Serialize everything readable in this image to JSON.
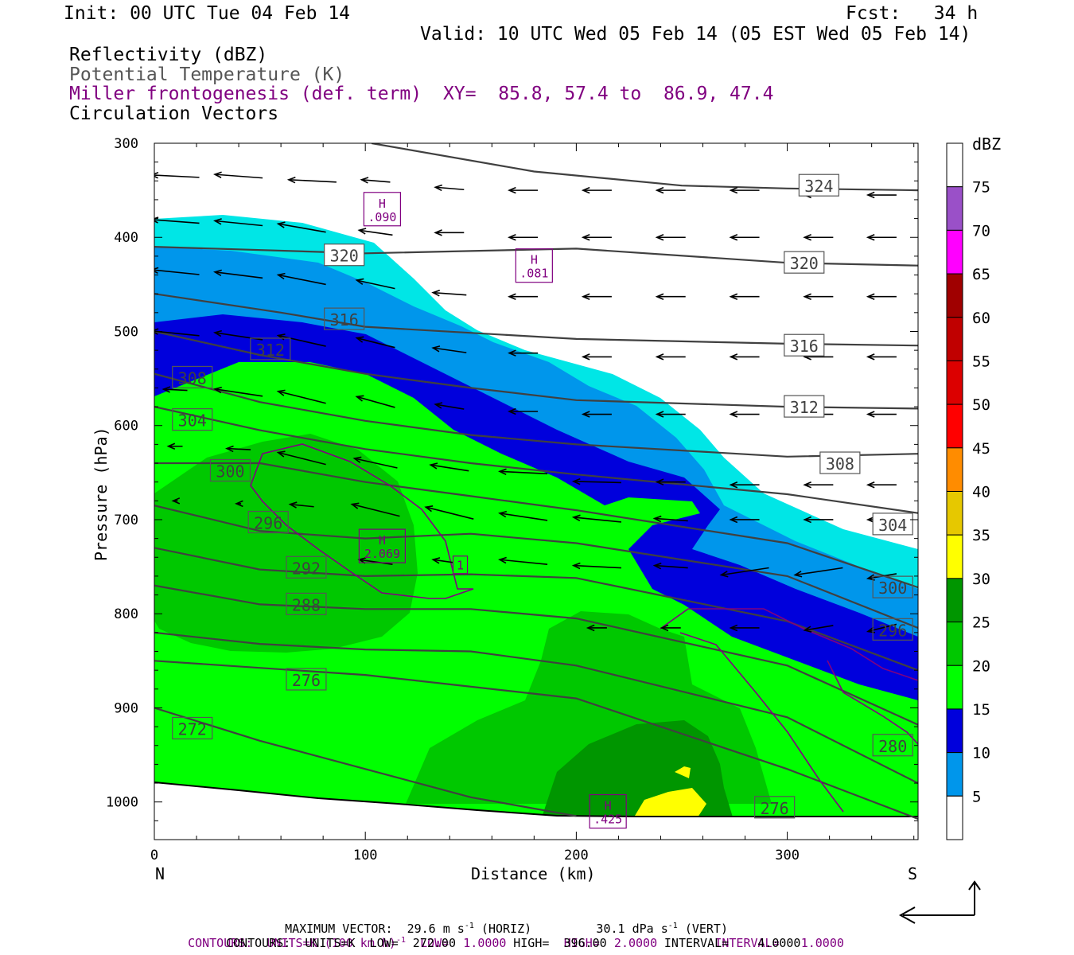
{
  "header": {
    "init": "Init: 00 UTC Tue 04 Feb 14",
    "fcst": "Fcst:   34 h",
    "valid": "Valid: 10 UTC Wed 05 Feb 14 (05 EST Wed 05 Feb 14)"
  },
  "fields": {
    "reflectivity": "Reflectivity (dBZ)",
    "theta": "Potential Temperature (K)",
    "frontogenesis": "Miller frontogenesis (def. term)",
    "xy": "XY=  85.8, 57.4 to  86.9, 47.4",
    "vectors": "Circulation Vectors"
  },
  "colors": {
    "r5": "#00e6e6",
    "r10": "#0096eb",
    "r15": "#0000dc",
    "r20": "#00ff00",
    "r25": "#00c800",
    "r30": "#009600",
    "r35": "#ffff00",
    "r40": "#e6c800",
    "r45": "#ff8c00",
    "r50": "#ff0000",
    "r55": "#dc0000",
    "r60": "#c00000",
    "r65": "#a00000",
    "r70": "#ff00ff",
    "r75": "#9a50c8",
    "theta_line": "#404040",
    "fronto_line": "#800080"
  },
  "chart_data": {
    "type": "cross-section",
    "xlabel": "Distance (km)",
    "ylabel": "Pressure (hPa)",
    "xlim": [
      0,
      362
    ],
    "ylim": [
      300,
      1040
    ],
    "x_ticks": [
      "0",
      "100",
      "200",
      "300"
    ],
    "y_ticks": [
      "300",
      "400",
      "500",
      "600",
      "700",
      "800",
      "900",
      "1000"
    ],
    "left_end": "N",
    "right_end": "S",
    "colorbar": {
      "unit": "dBZ",
      "levels": [
        "5",
        "10",
        "15",
        "20",
        "25",
        "30",
        "35",
        "40",
        "45",
        "50",
        "55",
        "60",
        "65",
        "70",
        "75"
      ]
    },
    "theta_contours": [
      {
        "label": "324",
        "x": [
          103,
          180,
          250,
          300,
          362
        ],
        "p": [
          300,
          330,
          345,
          348,
          350
        ]
      },
      {
        "label": "320",
        "x": [
          0,
          100,
          200,
          300,
          362
        ],
        "p": [
          410,
          417,
          412,
          427,
          430
        ]
      },
      {
        "label": "316",
        "x": [
          0,
          60,
          100,
          200,
          300,
          362
        ],
        "p": [
          460,
          480,
          495,
          508,
          513,
          515
        ]
      },
      {
        "label": "312",
        "x": [
          0,
          50,
          100,
          150,
          200,
          300,
          362
        ],
        "p": [
          500,
          525,
          545,
          560,
          573,
          580,
          582
        ]
      },
      {
        "label": "308",
        "x": [
          0,
          50,
          100,
          150,
          200,
          300,
          362
        ],
        "p": [
          545,
          575,
          595,
          610,
          620,
          633,
          630
        ]
      },
      {
        "label": "304",
        "x": [
          0,
          50,
          100,
          150,
          200,
          300,
          362
        ],
        "p": [
          580,
          605,
          625,
          640,
          652,
          673,
          693
        ]
      },
      {
        "label": "300",
        "x": [
          0,
          50,
          100,
          150,
          200,
          300,
          362
        ],
        "p": [
          640,
          640,
          660,
          675,
          690,
          725,
          772
        ]
      },
      {
        "label": "296",
        "x": [
          0,
          50,
          100,
          150,
          200,
          300,
          362
        ],
        "p": [
          685,
          712,
          720,
          715,
          725,
          760,
          815
        ]
      },
      {
        "label": "292",
        "x": [
          0,
          50,
          100,
          150,
          200,
          300,
          362
        ],
        "p": [
          730,
          753,
          760,
          758,
          762,
          808,
          860
        ]
      },
      {
        "label": "288",
        "x": [
          0,
          50,
          100,
          150,
          200,
          300,
          362
        ],
        "p": [
          770,
          790,
          795,
          795,
          805,
          855,
          918
        ]
      },
      {
        "label": "280",
        "x": [
          0,
          50,
          100,
          150,
          200,
          300,
          362
        ],
        "p": [
          820,
          832,
          838,
          840,
          855,
          910,
          980
        ]
      },
      {
        "label": "276",
        "x": [
          0,
          100,
          200,
          300,
          362
        ],
        "p": [
          850,
          865,
          890,
          965,
          1018
        ]
      },
      {
        "label": "272",
        "x": [
          0,
          50,
          100,
          150,
          200
        ],
        "p": [
          900,
          935,
          965,
          995,
          1015
        ]
      }
    ],
    "theta_labels": [
      {
        "text": "324",
        "x": 315,
        "p": 345
      },
      {
        "text": "320",
        "x": 90,
        "p": 419
      },
      {
        "text": "320",
        "x": 308,
        "p": 427
      },
      {
        "text": "316",
        "x": 90,
        "p": 487
      },
      {
        "text": "316",
        "x": 308,
        "p": 515
      },
      {
        "text": "312",
        "x": 55,
        "p": 519
      },
      {
        "text": "312",
        "x": 308,
        "p": 580
      },
      {
        "text": "308",
        "x": 18,
        "p": 549
      },
      {
        "text": "308",
        "x": 325,
        "p": 640
      },
      {
        "text": "304",
        "x": 18,
        "p": 594
      },
      {
        "text": "304",
        "x": 350,
        "p": 705
      },
      {
        "text": "300",
        "x": 36,
        "p": 648
      },
      {
        "text": "300",
        "x": 350,
        "p": 772
      },
      {
        "text": "296",
        "x": 54,
        "p": 703
      },
      {
        "text": "296",
        "x": 350,
        "p": 817
      },
      {
        "text": "292",
        "x": 72,
        "p": 751
      },
      {
        "text": "288",
        "x": 72,
        "p": 790
      },
      {
        "text": "280",
        "x": 350,
        "p": 940
      },
      {
        "text": "276",
        "x": 72,
        "p": 870
      },
      {
        "text": "276",
        "x": 294,
        "p": 1006
      },
      {
        "text": "272",
        "x": 18,
        "p": 922
      }
    ],
    "fronto_maxima": [
      {
        "label": "H",
        "value": ".090",
        "x": 108,
        "p": 370
      },
      {
        "label": "H",
        "value": ".081",
        "x": 180,
        "p": 430
      },
      {
        "label": "H",
        "value": "2.069",
        "x": 108,
        "p": 728
      },
      {
        "label": "H",
        "value": ".425",
        "x": 215,
        "p": 1010
      }
    ],
    "fronto_contour_label": {
      "text": "1",
      "x": 145,
      "p": 748
    },
    "vector_scale": {
      "max_horiz": "29.6",
      "max_vert": "30.1"
    },
    "vectors": [
      {
        "x": 10,
        "p": 335,
        "u": -1,
        "w": 0.1
      },
      {
        "x": 40,
        "p": 335,
        "u": -1,
        "w": 0.15
      },
      {
        "x": 75,
        "p": 340,
        "u": -1,
        "w": 0.1
      },
      {
        "x": 105,
        "p": 340,
        "u": -0.6,
        "w": 0.1
      },
      {
        "x": 140,
        "p": 348,
        "u": -0.6,
        "w": 0.1
      },
      {
        "x": 175,
        "p": 350,
        "u": -0.6,
        "w": 0
      },
      {
        "x": 210,
        "p": 350,
        "u": -0.6,
        "w": 0
      },
      {
        "x": 245,
        "p": 350,
        "u": -0.6,
        "w": 0
      },
      {
        "x": 280,
        "p": 350,
        "u": -0.6,
        "w": 0
      },
      {
        "x": 315,
        "p": 355,
        "u": -0.6,
        "w": 0
      },
      {
        "x": 345,
        "p": 355,
        "u": -0.6,
        "w": 0
      },
      {
        "x": 10,
        "p": 383,
        "u": -1,
        "w": 0.15
      },
      {
        "x": 40,
        "p": 385,
        "u": -1,
        "w": 0.2
      },
      {
        "x": 70,
        "p": 390,
        "u": -1,
        "w": 0.35
      },
      {
        "x": 105,
        "p": 395,
        "u": -0.7,
        "w": 0.2
      },
      {
        "x": 140,
        "p": 395,
        "u": -0.6,
        "w": 0
      },
      {
        "x": 175,
        "p": 400,
        "u": -0.6,
        "w": 0
      },
      {
        "x": 210,
        "p": 400,
        "u": -0.6,
        "w": 0
      },
      {
        "x": 245,
        "p": 400,
        "u": -0.6,
        "w": 0
      },
      {
        "x": 280,
        "p": 400,
        "u": -0.6,
        "w": 0
      },
      {
        "x": 315,
        "p": 400,
        "u": -0.6,
        "w": 0
      },
      {
        "x": 345,
        "p": 400,
        "u": -0.6,
        "w": 0
      },
      {
        "x": 10,
        "p": 437,
        "u": -1,
        "w": 0.2
      },
      {
        "x": 40,
        "p": 440,
        "u": -1,
        "w": 0.25
      },
      {
        "x": 70,
        "p": 445,
        "u": -1,
        "w": 0.4
      },
      {
        "x": 105,
        "p": 450,
        "u": -0.8,
        "w": 0.35
      },
      {
        "x": 140,
        "p": 460,
        "u": -0.7,
        "w": 0.1
      },
      {
        "x": 175,
        "p": 463,
        "u": -0.6,
        "w": 0
      },
      {
        "x": 210,
        "p": 463,
        "u": -0.6,
        "w": 0
      },
      {
        "x": 245,
        "p": 463,
        "u": -0.6,
        "w": 0
      },
      {
        "x": 280,
        "p": 463,
        "u": -0.6,
        "w": 0
      },
      {
        "x": 315,
        "p": 463,
        "u": -0.6,
        "w": 0
      },
      {
        "x": 345,
        "p": 463,
        "u": -0.6,
        "w": 0
      },
      {
        "x": 10,
        "p": 502,
        "u": -1,
        "w": 0.2
      },
      {
        "x": 40,
        "p": 505,
        "u": -1,
        "w": 0.3
      },
      {
        "x": 70,
        "p": 510,
        "u": -1,
        "w": 0.45
      },
      {
        "x": 105,
        "p": 512,
        "u": -0.8,
        "w": 0.4
      },
      {
        "x": 140,
        "p": 520,
        "u": -0.7,
        "w": 0.2
      },
      {
        "x": 175,
        "p": 523,
        "u": -0.6,
        "w": 0
      },
      {
        "x": 210,
        "p": 527,
        "u": -0.6,
        "w": 0
      },
      {
        "x": 245,
        "p": 527,
        "u": -0.6,
        "w": 0
      },
      {
        "x": 280,
        "p": 527,
        "u": -0.6,
        "w": 0
      },
      {
        "x": 315,
        "p": 527,
        "u": -0.6,
        "w": 0
      },
      {
        "x": 345,
        "p": 527,
        "u": -0.6,
        "w": 0
      },
      {
        "x": 10,
        "p": 562,
        "u": -0.5,
        "w": 0.05
      },
      {
        "x": 40,
        "p": 565,
        "u": -1,
        "w": 0.3
      },
      {
        "x": 70,
        "p": 570,
        "u": -1,
        "w": 0.5
      },
      {
        "x": 105,
        "p": 575,
        "u": -0.8,
        "w": 0.45
      },
      {
        "x": 140,
        "p": 580,
        "u": -0.6,
        "w": 0.2
      },
      {
        "x": 175,
        "p": 585,
        "u": -0.6,
        "w": 0
      },
      {
        "x": 210,
        "p": 588,
        "u": -0.6,
        "w": 0
      },
      {
        "x": 245,
        "p": 588,
        "u": -0.6,
        "w": 0
      },
      {
        "x": 280,
        "p": 588,
        "u": -0.6,
        "w": 0
      },
      {
        "x": 315,
        "p": 588,
        "u": -0.6,
        "w": 0
      },
      {
        "x": 345,
        "p": 588,
        "u": -0.6,
        "w": 0
      },
      {
        "x": 10,
        "p": 622,
        "u": -0.3,
        "w": 0
      },
      {
        "x": 40,
        "p": 625,
        "u": -0.5,
        "w": 0.05
      },
      {
        "x": 70,
        "p": 635,
        "u": -1,
        "w": 0.5
      },
      {
        "x": 105,
        "p": 640,
        "u": -0.9,
        "w": 0.4
      },
      {
        "x": 140,
        "p": 645,
        "u": -0.8,
        "w": 0.25
      },
      {
        "x": 175,
        "p": 650,
        "u": -1,
        "w": 0.1
      },
      {
        "x": 210,
        "p": 660,
        "u": -1,
        "w": 0.05
      },
      {
        "x": 245,
        "p": 660,
        "u": -0.6,
        "w": 0
      },
      {
        "x": 280,
        "p": 663,
        "u": -0.6,
        "w": 0
      },
      {
        "x": 315,
        "p": 663,
        "u": -0.6,
        "w": 0
      },
      {
        "x": 345,
        "p": 663,
        "u": -0.6,
        "w": 0
      },
      {
        "x": 10,
        "p": 680,
        "u": -0.1,
        "w": 0
      },
      {
        "x": 40,
        "p": 683,
        "u": -0.1,
        "w": 0
      },
      {
        "x": 70,
        "p": 685,
        "u": -0.5,
        "w": 0.1
      },
      {
        "x": 105,
        "p": 690,
        "u": -1,
        "w": 0.5
      },
      {
        "x": 140,
        "p": 693,
        "u": -1,
        "w": 0.5
      },
      {
        "x": 175,
        "p": 697,
        "u": -1,
        "w": 0.3
      },
      {
        "x": 210,
        "p": 700,
        "u": -1,
        "w": 0.2
      },
      {
        "x": 245,
        "p": 700,
        "u": -0.7,
        "w": 0.1
      },
      {
        "x": 280,
        "p": 700,
        "u": -0.6,
        "w": 0
      },
      {
        "x": 315,
        "p": 700,
        "u": -0.6,
        "w": 0
      },
      {
        "x": 345,
        "p": 700,
        "u": -0.6,
        "w": 0
      },
      {
        "x": 105,
        "p": 745,
        "u": -0.7,
        "w": 0.2
      },
      {
        "x": 140,
        "p": 745,
        "u": -0.7,
        "w": 0.2
      },
      {
        "x": 175,
        "p": 745,
        "u": -1,
        "w": 0.2
      },
      {
        "x": 210,
        "p": 750,
        "u": -1,
        "w": 0.1
      },
      {
        "x": 245,
        "p": 750,
        "u": -0.7,
        "w": 0.1
      },
      {
        "x": 280,
        "p": 755,
        "u": -1,
        "w": -0.3
      },
      {
        "x": 315,
        "p": 755,
        "u": -1,
        "w": -0.3
      },
      {
        "x": 345,
        "p": 760,
        "u": -0.6,
        "w": -0.2
      },
      {
        "x": 210,
        "p": 815,
        "u": -0.4,
        "w": 0
      },
      {
        "x": 245,
        "p": 815,
        "u": -0.4,
        "w": 0
      },
      {
        "x": 280,
        "p": 815,
        "u": -0.6,
        "w": 0
      },
      {
        "x": 315,
        "p": 815,
        "u": -0.6,
        "w": -0.2
      },
      {
        "x": 345,
        "p": 815,
        "u": -0.6,
        "w": -0.3
      }
    ]
  },
  "footer": {
    "line1": "MAXIMUM VECTOR:  29.6 m s",
    "line1b": "(HORIZ)         30.1 dPa s",
    "line1c": "(VERT)",
    "line2": "CONTOURS:  UNITS=K (100 km h)",
    "line2b": "LOW=  1.0000        HIGH=  2.0000        INTERVAL=   1.0000",
    "line3": "CONTOURS:  UNITS=K  LOW=  272.00        HIGH=  396.00        INTERVAL=    4.0000",
    "sup": "-1"
  }
}
